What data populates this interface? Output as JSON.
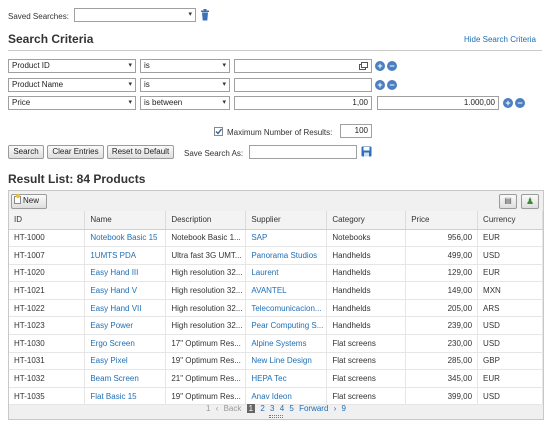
{
  "saved_searches": {
    "label": "Saved Searches:",
    "value": ""
  },
  "search_criteria": {
    "title": "Search Criteria",
    "hide_link": "Hide Search Criteria",
    "rows": [
      {
        "field": "Product ID",
        "operator": "is",
        "value1": "",
        "value2": ""
      },
      {
        "field": "Product Name",
        "operator": "is",
        "value1": "",
        "value2": ""
      },
      {
        "field": "Price",
        "operator": "is between",
        "value1": "1,00",
        "value2": "1.000,00"
      }
    ],
    "max_results_label": "Maximum Number of Results:",
    "max_results_checked": true,
    "max_results_value": "100",
    "buttons": {
      "search": "Search",
      "clear": "Clear Entries",
      "reset": "Reset to Default"
    },
    "save_as_label": "Save Search As:",
    "save_as_value": ""
  },
  "result_list": {
    "title": "Result List: 84 Products",
    "new_button": "New",
    "columns": [
      "ID",
      "Name",
      "Description",
      "Supplier",
      "Category",
      "Price",
      "Currency"
    ],
    "rows": [
      [
        "HT-1000",
        "Notebook Basic 15",
        "Notebook Basic 1...",
        "SAP",
        "Notebooks",
        "956,00",
        "EUR"
      ],
      [
        "HT-1007",
        "1UMTS PDA",
        "Ultra fast 3G UMT...",
        "Panorama Studios",
        "Handhelds",
        "499,00",
        "USD"
      ],
      [
        "HT-1020",
        "Easy Hand III",
        "High resolution 32...",
        "Laurent",
        "Handhelds",
        "129,00",
        "EUR"
      ],
      [
        "HT-1021",
        "Easy Hand V",
        "High resolution 32...",
        "AVANTEL",
        "Handhelds",
        "149,00",
        "MXN"
      ],
      [
        "HT-1022",
        "Easy Hand VII",
        "High resolution 32...",
        "Telecomunicacion...",
        "Handhelds",
        "205,00",
        "ARS"
      ],
      [
        "HT-1023",
        "Easy Power",
        "High resolution 32...",
        "Pear Computing S...",
        "Handhelds",
        "239,00",
        "USD"
      ],
      [
        "HT-1030",
        "Ergo Screen",
        "17\" Optimum Res...",
        "Alpine Systems",
        "Flat screens",
        "230,00",
        "USD"
      ],
      [
        "HT-1031",
        "Easy Pixel",
        "19\" Optimum Res...",
        "New Line Design",
        "Flat screens",
        "285,00",
        "GBP"
      ],
      [
        "HT-1032",
        "Beam Screen",
        "21\" Optimum Res...",
        "HEPA Tec",
        "Flat screens",
        "345,00",
        "EUR"
      ],
      [
        "HT-1035",
        "Flat Basic 15",
        "19\" Optimum Res...",
        "Anav Ideon",
        "Flat screens",
        "399,00",
        "USD"
      ]
    ],
    "pager": {
      "first": "1",
      "back": "Back",
      "pages": [
        "1",
        "2",
        "3",
        "4",
        "5"
      ],
      "current": "1",
      "forward": "Forward",
      "last": "9"
    }
  },
  "colors": {
    "accent": "#1f6fb5",
    "icon_blue": "#4a7fc1"
  }
}
